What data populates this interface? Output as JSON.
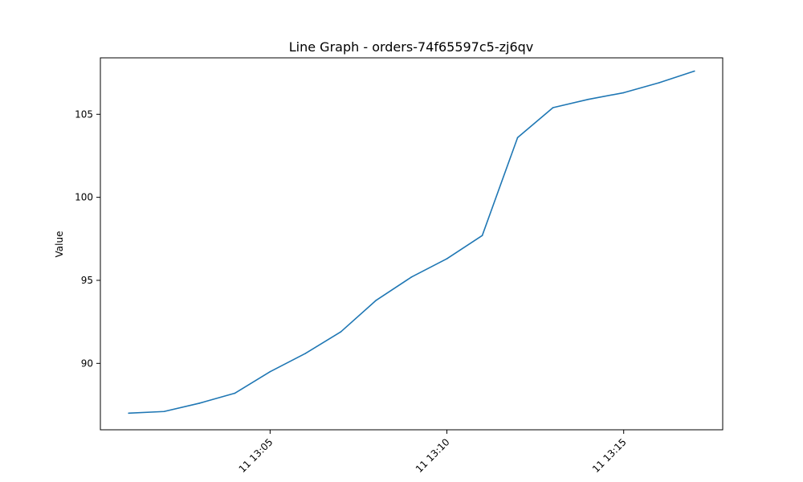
{
  "chart_data": {
    "type": "line",
    "title": "Line Graph - orders-74f65597c5-zj6qv",
    "xlabel": "",
    "ylabel": "Value",
    "grid": false,
    "legend": "none",
    "color": "#1f77b4",
    "xlim_minutes": [
      13.0,
      13.5
    ],
    "ylim": [
      86,
      108.4
    ],
    "x_ticks": [
      {
        "minute": 13.083,
        "label": "11 13:05"
      },
      {
        "minute": 13.167,
        "label": "11 13:10"
      },
      {
        "minute": 13.25,
        "label": "11 13:15"
      }
    ],
    "y_ticks": [
      {
        "value": 90,
        "label": "90"
      },
      {
        "value": 95,
        "label": "95"
      },
      {
        "value": 100,
        "label": "100"
      },
      {
        "value": 105,
        "label": "105"
      }
    ],
    "series": [
      {
        "name": "orders-74f65597c5-zj6qv",
        "x_labels": [
          "13:01",
          "13:02",
          "13:03",
          "13:04",
          "13:05",
          "13:06",
          "13:07",
          "13:08",
          "13:09",
          "13:10",
          "13:11",
          "13:12",
          "13:13",
          "13:14",
          "13:15",
          "13:16",
          "13:17"
        ],
        "x_minutes": [
          1,
          2,
          3,
          4,
          5,
          6,
          7,
          8,
          9,
          10,
          11,
          12,
          13,
          14,
          15,
          16,
          17
        ],
        "values": [
          87.0,
          87.1,
          87.6,
          88.2,
          89.5,
          90.6,
          91.9,
          93.8,
          95.2,
          96.3,
          97.7,
          103.6,
          105.4,
          105.9,
          106.3,
          106.9,
          107.6
        ]
      }
    ]
  }
}
